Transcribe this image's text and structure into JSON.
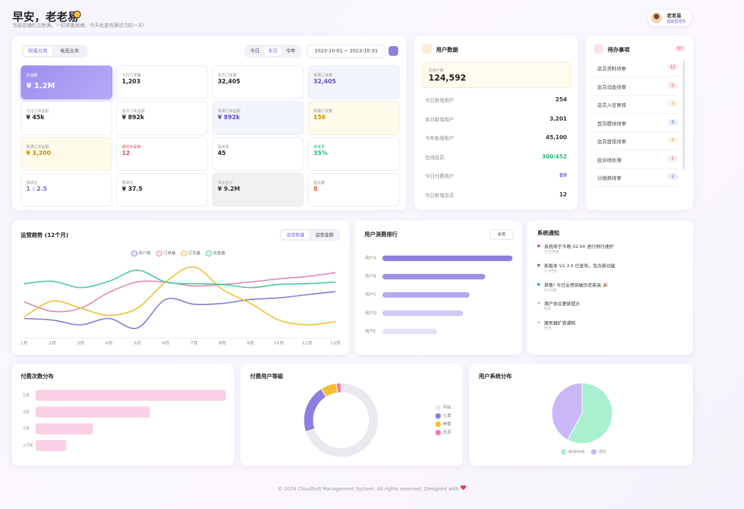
{
  "header": {
    "title": "早安，老老易",
    "subtitle": "当前店铺红尘附满，一切准备就绪，今天也是充满活力的一天!",
    "user_name": "老老易",
    "user_role": "超级管理员"
  },
  "stats": {
    "business_tabs": [
      "附属业务",
      "电竞业务"
    ],
    "period_tabs": [
      "今日",
      "本月",
      "今年"
    ],
    "date_range": "2023-10-01 ~ 2023-10-31",
    "cards": [
      {
        "label": "总金额",
        "value": "¥ 1.2M"
      },
      {
        "label": "今日订单量",
        "value": "1,203"
      },
      {
        "label": "本月订单量",
        "value": "32,405"
      },
      {
        "label": "客满订单量",
        "value": "32,405"
      },
      {
        "label": "今日订单金额",
        "value": "¥ 45k"
      },
      {
        "label": "本月订单金额",
        "value": "¥ 892k"
      },
      {
        "label": "客满订单金额",
        "value": "¥ 892k"
      },
      {
        "label": "客满订货量",
        "value": "156"
      },
      {
        "label": "客满订货金额",
        "value": "¥ 3,200"
      },
      {
        "label": "超时未接单",
        "value": "12"
      },
      {
        "label": "接单率",
        "value": "45"
      },
      {
        "label": "续单率",
        "value": "35%"
      },
      {
        "label": "接续比",
        "value": "1 : 2.5"
      },
      {
        "label": "客单价",
        "value": "¥ 37.5"
      },
      {
        "label": "流水总计",
        "value": "¥ 9.2M"
      },
      {
        "label": "投诉量",
        "value": "8"
      }
    ]
  },
  "user_data": {
    "title": "用户数据",
    "total_label": "总用户数",
    "total": "124,592",
    "rows": [
      {
        "label": "今日新增用户",
        "value": "254"
      },
      {
        "label": "本月新增用户",
        "value": "3,201"
      },
      {
        "label": "今年新增用户",
        "value": "45,100"
      },
      {
        "label": "在线店员",
        "value": "300/452",
        "color": "#2fb57a"
      },
      {
        "label": "今日付费用户",
        "value": "89",
        "color": "#7a6ad8"
      },
      {
        "label": "今日新增店员",
        "value": "12"
      }
    ]
  },
  "todo": {
    "title": "待办事项",
    "badge": "9+",
    "items": [
      {
        "label": "店员资料待审",
        "count": "12",
        "color": "#e8505b"
      },
      {
        "label": "店员动态待审",
        "count": "5",
        "color": "#e8505b"
      },
      {
        "label": "店员入驻审核",
        "count": "3",
        "color": "#e89a2c"
      },
      {
        "label": "首页模块待审",
        "count": "8",
        "color": "#4f7fe0"
      },
      {
        "label": "店员提现待审",
        "count": "4",
        "color": "#e89a2c"
      },
      {
        "label": "投诉待处理",
        "count": "1",
        "color": "#e8505b"
      },
      {
        "label": "分销商待审",
        "count": "2",
        "color": "#4f7fe0"
      }
    ]
  },
  "trend_chart": {
    "type": "line",
    "title": "运营趋势 (12个月)",
    "tabs": [
      "运营数量",
      "运营金额"
    ],
    "categories": [
      "1月",
      "2月",
      "3月",
      "4月",
      "5月",
      "6月",
      "7月",
      "8月",
      "9月",
      "10月",
      "11月",
      "12月"
    ],
    "ylim": [
      0,
      100
    ],
    "series": [
      {
        "name": "用户数",
        "color": "#8b7fd6",
        "values": [
          24,
          22,
          16,
          24,
          12,
          48,
          42,
          43,
          48,
          50,
          54,
          58
        ]
      },
      {
        "name": "订单量",
        "color": "#e08bb8",
        "values": [
          45,
          33,
          37,
          57,
          70,
          70,
          65,
          67,
          70,
          74,
          77,
          82
        ]
      },
      {
        "name": "订货量",
        "color": "#e8c53a",
        "values": [
          26,
          46,
          37,
          28,
          37,
          70,
          89,
          61,
          43,
          22,
          16,
          20
        ]
      },
      {
        "name": "充值量",
        "color": "#4ecba0",
        "values": [
          68,
          71,
          63,
          71,
          85,
          70,
          68,
          67,
          63,
          67,
          68,
          70
        ]
      }
    ]
  },
  "ranking_chart": {
    "type": "bar",
    "title": "用户消费排行",
    "filter": "本周",
    "categories": [
      "用户A",
      "用户B",
      "用户C",
      "用户D",
      "用户E"
    ],
    "values": [
      100,
      79,
      67,
      62,
      42
    ],
    "xlim": [
      0,
      100
    ],
    "colors": [
      "#8f7fe0",
      "#9d8fe6",
      "#b5a8ee",
      "#d0c8f5",
      "#e6e1fa"
    ]
  },
  "notices": {
    "title": "系统通知",
    "items": [
      {
        "text": "系统将于今晚 02:00 进行例行维护",
        "time": "10分钟前",
        "color": "#e8505b"
      },
      {
        "text": "新版本 V2.3.0 已发布，包含新功能",
        "time": "2小时前",
        "color": "#7a6ad8"
      },
      {
        "text": "恭喜! 今日业绩突破历史新高 🎉",
        "time": "5小时前",
        "color": "#2fb57a"
      },
      {
        "text": "用户协议更新提示",
        "time": "昨天",
        "color": "#cfcfd6"
      },
      {
        "text": "服务器扩容通知",
        "time": "昨天",
        "color": "#cfcfd6"
      }
    ]
  },
  "pay_count_chart": {
    "type": "bar",
    "title": "付费次数分布",
    "categories": [
      "1次",
      "3次",
      "7次",
      ">7次"
    ],
    "values": [
      100,
      60,
      30,
      16
    ],
    "xlim": [
      0,
      100
    ],
    "color": "#fbcfe6"
  },
  "level_chart": {
    "type": "donut",
    "title": "付费用户等级",
    "categories": [
      "平民",
      "土豪",
      "神豪",
      "无双"
    ],
    "values": [
      70,
      21,
      7,
      2
    ],
    "colors": [
      "#ebe8ef",
      "#8b7fe0",
      "#f5c030",
      "#f07ab0"
    ]
  },
  "os_chart": {
    "type": "pie",
    "title": "用户系统分布",
    "categories": [
      "Android",
      "iOS"
    ],
    "values": [
      58,
      42
    ],
    "colors": [
      "#a8f0d0",
      "#c9b8f5"
    ]
  },
  "footer": {
    "text": "© 2024 CloudSoft Management System. All rights reserved. Designed with"
  }
}
